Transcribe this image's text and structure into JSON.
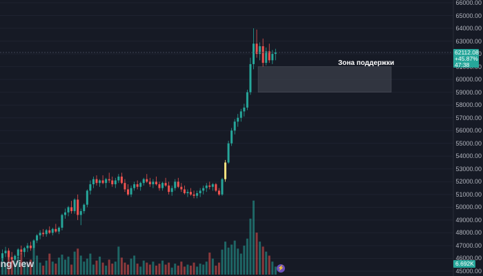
{
  "chart_data": {
    "type": "candlestick",
    "price_axis": {
      "ticks": [
        "66000.00",
        "65000.00",
        "64000.00",
        "63000.00",
        "62000.00",
        "61000.00",
        "60000.00",
        "59000.00",
        "58000.00",
        "57000.00",
        "56000.00",
        "55000.00",
        "54000.00",
        "53000.00",
        "52000.00",
        "51000.00",
        "50000.00",
        "49000.00",
        "48000.00",
        "47000.00",
        "46000.00",
        "45000.00"
      ],
      "ylim": [
        45000,
        66000
      ]
    },
    "last_price": "62112.08",
    "change_percent": "+45.87%",
    "countdown": "47:38",
    "volume_value": "6.692K",
    "support_zone": {
      "label": "Зона поддержки",
      "low": 59000,
      "high": 61000
    },
    "candles": [
      [
        46000,
        46700,
        45800,
        46400
      ],
      [
        46400,
        46900,
        46100,
        46600
      ],
      [
        46600,
        46800,
        45900,
        46100
      ],
      [
        46100,
        46500,
        45600,
        45900
      ],
      [
        45900,
        46300,
        45500,
        46200
      ],
      [
        46200,
        46800,
        46000,
        46700
      ],
      [
        46700,
        47000,
        46300,
        46500
      ],
      [
        46500,
        46900,
        46100,
        46800
      ],
      [
        46800,
        47200,
        46500,
        47000
      ],
      [
        47000,
        47300,
        46600,
        46800
      ],
      [
        46800,
        47500,
        46700,
        47400
      ],
      [
        47400,
        47900,
        47200,
        47800
      ],
      [
        47800,
        48200,
        47500,
        48000
      ],
      [
        48000,
        48300,
        47700,
        47900
      ],
      [
        47900,
        48300,
        47700,
        48200
      ],
      [
        48200,
        48500,
        47900,
        48000
      ],
      [
        48000,
        48400,
        47800,
        48300
      ],
      [
        48300,
        48700,
        48000,
        48100
      ],
      [
        48100,
        48500,
        47900,
        48400
      ],
      [
        48400,
        49500,
        48200,
        49400
      ],
      [
        49400,
        49900,
        49100,
        49600
      ],
      [
        49600,
        50100,
        49300,
        50000
      ],
      [
        50000,
        50500,
        49500,
        49700
      ],
      [
        49700,
        50700,
        49500,
        50600
      ],
      [
        50600,
        51000,
        49000,
        49400
      ],
      [
        49400,
        49900,
        48600,
        49700
      ],
      [
        49700,
        50300,
        49500,
        50200
      ],
      [
        50200,
        51400,
        50000,
        51300
      ],
      [
        51300,
        52100,
        51000,
        51800
      ],
      [
        51800,
        52400,
        51500,
        52200
      ],
      [
        52200,
        52500,
        51700,
        51900
      ],
      [
        51900,
        52200,
        51600,
        52100
      ],
      [
        52100,
        52500,
        51800,
        51900
      ],
      [
        51900,
        52300,
        51500,
        52200
      ],
      [
        52200,
        52700,
        51900,
        52100
      ],
      [
        52100,
        52400,
        51600,
        51800
      ],
      [
        51800,
        52300,
        51500,
        52100
      ],
      [
        52100,
        52600,
        51900,
        52400
      ],
      [
        52400,
        52700,
        51800,
        51900
      ],
      [
        51900,
        52200,
        51200,
        51400
      ],
      [
        51400,
        51800,
        50900,
        51000
      ],
      [
        51000,
        51700,
        50800,
        51500
      ],
      [
        51500,
        52000,
        51300,
        51800
      ],
      [
        51800,
        52100,
        51400,
        51600
      ],
      [
        51600,
        52000,
        51300,
        51900
      ],
      [
        51900,
        52300,
        51700,
        52200
      ],
      [
        52200,
        52600,
        51900,
        52000
      ],
      [
        52000,
        52300,
        51600,
        51800
      ],
      [
        51800,
        52200,
        51500,
        52000
      ],
      [
        52000,
        52400,
        51700,
        51800
      ],
      [
        51800,
        52000,
        51300,
        51500
      ],
      [
        51500,
        52000,
        51300,
        51900
      ],
      [
        51900,
        52300,
        51600,
        51700
      ],
      [
        51700,
        52000,
        51000,
        51200
      ],
      [
        51200,
        51700,
        50900,
        51500
      ],
      [
        51500,
        52200,
        51300,
        52000
      ],
      [
        52000,
        52300,
        51500,
        51600
      ],
      [
        51600,
        51900,
        51200,
        51400
      ],
      [
        51400,
        51700,
        51000,
        51100
      ],
      [
        51100,
        51400,
        50800,
        51200
      ],
      [
        51200,
        51500,
        50900,
        51000
      ],
      [
        51000,
        51300,
        50700,
        50900
      ],
      [
        50900,
        51300,
        50700,
        51100
      ],
      [
        51100,
        51500,
        50800,
        51300
      ],
      [
        51300,
        51700,
        51000,
        51500
      ],
      [
        51500,
        51900,
        51200,
        51700
      ],
      [
        51700,
        52000,
        51400,
        51600
      ],
      [
        51600,
        51900,
        51300,
        51800
      ],
      [
        51800,
        51900,
        51200,
        51300
      ],
      [
        51300,
        51500,
        50900,
        51000
      ],
      [
        51000,
        52300,
        50900,
        52200
      ],
      [
        52200,
        53700,
        52000,
        53500
      ],
      [
        53500,
        55200,
        53400,
        55000
      ],
      [
        55000,
        56200,
        54800,
        56000
      ],
      [
        56000,
        56900,
        55700,
        56700
      ],
      [
        56700,
        57300,
        56300,
        57000
      ],
      [
        57000,
        57700,
        56700,
        57500
      ],
      [
        57500,
        58100,
        57100,
        57800
      ],
      [
        57800,
        59200,
        57600,
        59000
      ],
      [
        59000,
        61700,
        58800,
        61200
      ],
      [
        61200,
        64000,
        60800,
        62800
      ],
      [
        62800,
        63900,
        61700,
        62000
      ],
      [
        62000,
        62900,
        61500,
        62600
      ],
      [
        62600,
        63200,
        61000,
        61300
      ],
      [
        61300,
        62500,
        61100,
        62200
      ],
      [
        62200,
        62800,
        61300,
        61500
      ],
      [
        61500,
        62300,
        61200,
        62000
      ],
      [
        62000,
        62400,
        61500,
        62112
      ]
    ],
    "volumes": [
      1.6,
      1.2,
      2.4,
      1.4,
      1.1,
      1.8,
      2.2,
      1.3,
      1.0,
      1.5,
      2.6,
      1.9,
      1.2,
      0.9,
      1.4,
      2.1,
      1.3,
      1.1,
      1.7,
      2.0,
      1.5,
      1.8,
      1.0,
      2.3,
      2.6,
      1.9,
      1.3,
      1.6,
      2.1,
      1.0,
      1.4,
      1.8,
      1.2,
      0.9,
      1.5,
      1.1,
      1.3,
      2.8,
      1.7,
      1.2,
      1.0,
      1.6,
      1.9,
      1.1,
      0.8,
      1.4,
      1.2,
      1.0,
      1.3,
      0.9,
      1.1,
      1.4,
      1.0,
      1.2,
      0.7,
      1.1,
      0.9,
      1.3,
      0.8,
      1.0,
      0.9,
      1.2,
      0.8,
      1.1,
      1.0,
      1.3,
      2.2,
      1.6,
      0.9,
      1.2,
      2.5,
      3.3,
      2.7,
      3.0,
      3.4,
      2.6,
      2.1,
      2.9,
      3.6,
      5.6,
      7.4,
      4.2,
      3.3,
      2.8,
      2.3,
      1.9,
      1.3,
      0.8
    ],
    "colors": {
      "up": "#26a69a",
      "down": "#ef5350",
      "spike": "#f7e27e",
      "background": "#161a25",
      "grid": "#1f2330",
      "zone": "#3a3f4a"
    }
  },
  "watermark": "dingView",
  "bolt_icon": "⚡"
}
